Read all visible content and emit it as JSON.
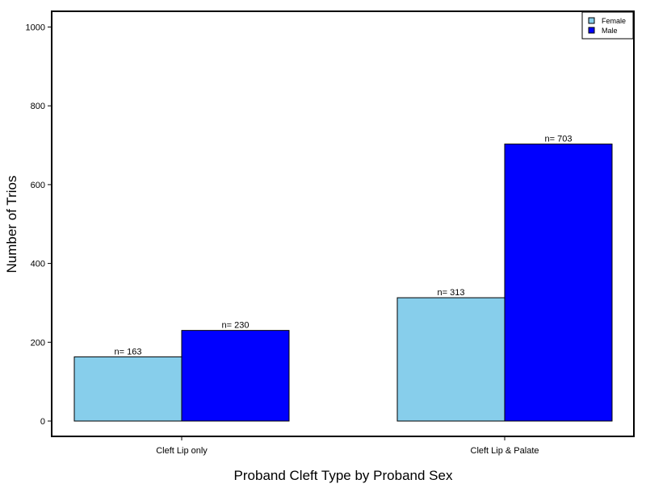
{
  "chart_data": {
    "type": "bar",
    "title": "",
    "xlabel": "Proband Cleft Type by Proband Sex",
    "ylabel": "Number of Trios",
    "categories": [
      "Cleft Lip only",
      "Cleft Lip & Palate"
    ],
    "series": [
      {
        "name": "Female",
        "color": "#87ceeb",
        "values": [
          163,
          313
        ],
        "labels": [
          "n= 163",
          "n= 313"
        ]
      },
      {
        "name": "Male",
        "color": "#0000ff",
        "values": [
          230,
          703
        ],
        "labels": [
          "n= 230",
          "n= 703"
        ]
      }
    ],
    "ylim": [
      -40,
      1040
    ],
    "yticks": [
      0,
      200,
      400,
      600,
      800,
      1000
    ],
    "grid": false,
    "legend_position": "top-right"
  }
}
